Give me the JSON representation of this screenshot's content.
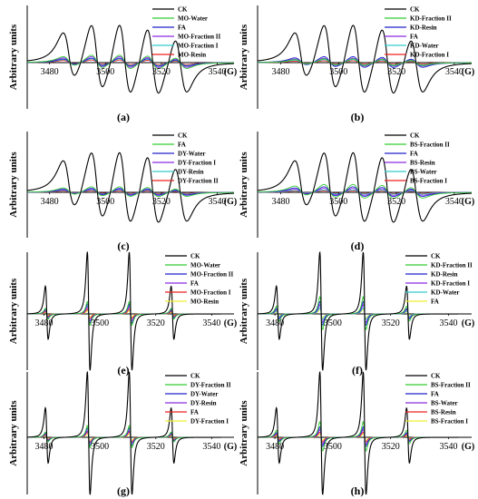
{
  "figure": {
    "background": "#ffffff"
  },
  "chart_data": [
    {
      "panel": "(a)",
      "type": "line",
      "ylabel": "Arbitrary units",
      "x_unit": "(G)",
      "xlim": [
        3472,
        3546
      ],
      "ylim": [
        -1,
        1
      ],
      "xticks": [
        3480,
        3500,
        3520,
        3540
      ],
      "spectrum": "dpph",
      "series": [
        {
          "name": "CK",
          "color": "#000000",
          "amplitude": 1.0
        },
        {
          "name": "MO-Water",
          "color": "#33cc33",
          "amplitude": 0.2
        },
        {
          "name": "FA",
          "color": "#2222cc",
          "amplitude": 0.12
        },
        {
          "name": "MO-Fraction II",
          "color": "#8a2be2",
          "amplitude": 0.16
        },
        {
          "name": "MO-Fraction I",
          "color": "#33cccc",
          "amplitude": 0.1
        },
        {
          "name": "MO-Resin",
          "color": "#ee2222",
          "amplitude": 0.07
        }
      ]
    },
    {
      "panel": "(b)",
      "type": "line",
      "ylabel": "Arbitrary units",
      "x_unit": "(G)",
      "xlim": [
        3472,
        3546
      ],
      "ylim": [
        -1,
        1
      ],
      "xticks": [
        3480,
        3500,
        3520,
        3540
      ],
      "spectrum": "dpph",
      "series": [
        {
          "name": "CK",
          "color": "#000000",
          "amplitude": 1.0
        },
        {
          "name": "KD-Fraction II",
          "color": "#33cc33",
          "amplitude": 0.1
        },
        {
          "name": "KD-Resin",
          "color": "#2222cc",
          "amplitude": 0.16
        },
        {
          "name": "FA",
          "color": "#8a2be2",
          "amplitude": 0.12
        },
        {
          "name": "KD-Water",
          "color": "#33cccc",
          "amplitude": 0.08
        },
        {
          "name": "KD-Fraction I",
          "color": "#ee2222",
          "amplitude": 0.05
        }
      ]
    },
    {
      "panel": "(c)",
      "type": "line",
      "ylabel": "Arbitrary units",
      "x_unit": "(G)",
      "xlim": [
        3472,
        3546
      ],
      "ylim": [
        -1,
        1
      ],
      "xticks": [
        3480,
        3500,
        3520,
        3540
      ],
      "spectrum": "dpph",
      "series": [
        {
          "name": "CK",
          "color": "#000000",
          "amplitude": 1.0
        },
        {
          "name": "FA",
          "color": "#33cc33",
          "amplitude": 0.14
        },
        {
          "name": "DY-Water",
          "color": "#2222cc",
          "amplitude": 0.1
        },
        {
          "name": "DY-Fraction I",
          "color": "#8a2be2",
          "amplitude": 0.08
        },
        {
          "name": "DY-Resin",
          "color": "#33cccc",
          "amplitude": 0.06
        },
        {
          "name": "DY-Fraction II",
          "color": "#ee2222",
          "amplitude": 0.04
        }
      ]
    },
    {
      "panel": "(d)",
      "type": "line",
      "ylabel": "Arbitrary units",
      "x_unit": "(G)",
      "xlim": [
        3472,
        3546
      ],
      "ylim": [
        -1,
        1
      ],
      "xticks": [
        3480,
        3500,
        3520,
        3540
      ],
      "spectrum": "dpph",
      "series": [
        {
          "name": "CK",
          "color": "#000000",
          "amplitude": 1.0
        },
        {
          "name": "BS-Fraction II",
          "color": "#33cc33",
          "amplitude": 0.2
        },
        {
          "name": "FA",
          "color": "#2222cc",
          "amplitude": 0.14
        },
        {
          "name": "BS-Resin",
          "color": "#8a2be2",
          "amplitude": 0.1
        },
        {
          "name": "BS-Water",
          "color": "#33cccc",
          "amplitude": 0.06
        },
        {
          "name": "BS-Fraction I",
          "color": "#ee2222",
          "amplitude": 0.04
        }
      ]
    },
    {
      "panel": "(e)",
      "type": "line",
      "ylabel": "Arbitrary units",
      "x_unit": "(G)",
      "xlim": [
        3474,
        3548
      ],
      "ylim": [
        -1,
        1
      ],
      "xticks": [
        3480,
        3500,
        3520,
        3540
      ],
      "spectrum": "quartet",
      "series": [
        {
          "name": "CK",
          "color": "#000000",
          "amplitude": 1.0
        },
        {
          "name": "MO-Water",
          "color": "#33cc33",
          "amplitude": 0.2
        },
        {
          "name": "MO-Fraction II",
          "color": "#2222cc",
          "amplitude": 0.16
        },
        {
          "name": "FA",
          "color": "#8a2be2",
          "amplitude": 0.12
        },
        {
          "name": "MO-Fraction I",
          "color": "#ee2222",
          "amplitude": 0.08
        },
        {
          "name": "MO-Resin",
          "color": "#eeee33",
          "amplitude": 0.05
        }
      ]
    },
    {
      "panel": "(f)",
      "type": "line",
      "ylabel": "Arbitrary units",
      "x_unit": "(G)",
      "xlim": [
        3474,
        3548
      ],
      "ylim": [
        -1,
        1
      ],
      "xticks": [
        3480,
        3500,
        3520,
        3540
      ],
      "spectrum": "quartet",
      "series": [
        {
          "name": "CK",
          "color": "#000000",
          "amplitude": 1.0
        },
        {
          "name": "KD-Fraction II",
          "color": "#33cc33",
          "amplitude": 0.28
        },
        {
          "name": "KD-Resin",
          "color": "#2222cc",
          "amplitude": 0.2
        },
        {
          "name": "KD-Fraction I",
          "color": "#8a2be2",
          "amplitude": 0.15
        },
        {
          "name": "KD-Water",
          "color": "#33cccc",
          "amplitude": 0.1
        },
        {
          "name": "FA",
          "color": "#eeee33",
          "amplitude": 0.07
        }
      ]
    },
    {
      "panel": "(g)",
      "type": "line",
      "ylabel": "Arbitrary units",
      "x_unit": "(G)",
      "xlim": [
        3474,
        3548
      ],
      "ylim": [
        -1,
        1
      ],
      "xticks": [
        3480,
        3500,
        3520,
        3540
      ],
      "spectrum": "quartet",
      "series": [
        {
          "name": "CK",
          "color": "#000000",
          "amplitude": 1.0
        },
        {
          "name": "DY-Fraction II",
          "color": "#33cc33",
          "amplitude": 0.18
        },
        {
          "name": "DY-Water",
          "color": "#2222cc",
          "amplitude": 0.14
        },
        {
          "name": "DY-Resin",
          "color": "#8a2be2",
          "amplitude": 0.1
        },
        {
          "name": "FA",
          "color": "#ee2222",
          "amplitude": 0.08
        },
        {
          "name": "DY-Fraction I",
          "color": "#eeee33",
          "amplitude": 0.05
        }
      ]
    },
    {
      "panel": "(h)",
      "type": "line",
      "ylabel": "Arbitrary units",
      "x_unit": "(G)",
      "xlim": [
        3474,
        3548
      ],
      "ylim": [
        -1,
        1
      ],
      "xticks": [
        3480,
        3500,
        3520,
        3540
      ],
      "spectrum": "quartet",
      "series": [
        {
          "name": "CK",
          "color": "#000000",
          "amplitude": 1.0
        },
        {
          "name": "BS-Fraction II",
          "color": "#33cc33",
          "amplitude": 0.24
        },
        {
          "name": "FA",
          "color": "#2222cc",
          "amplitude": 0.16
        },
        {
          "name": "BS-Water",
          "color": "#8a2be2",
          "amplitude": 0.12
        },
        {
          "name": "BS-Resin",
          "color": "#ee2222",
          "amplitude": 0.08
        },
        {
          "name": "BS-Fraction I",
          "color": "#eeee33",
          "amplitude": 0.05
        }
      ]
    }
  ]
}
